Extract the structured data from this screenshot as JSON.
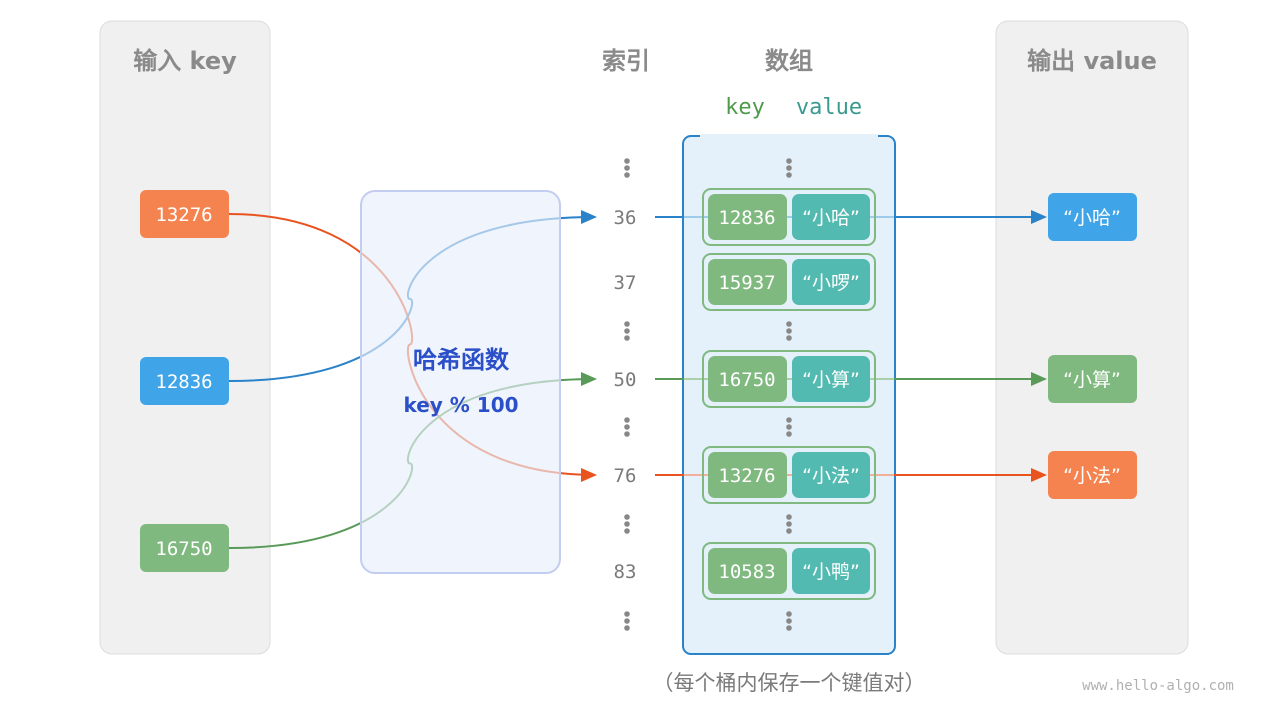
{
  "input_panel": {
    "title": "输入 key",
    "keys": [
      {
        "label": "13276",
        "color": "#f5834f"
      },
      {
        "label": "12836",
        "color": "#3fa4e8"
      },
      {
        "label": "16750",
        "color": "#80b97f"
      }
    ]
  },
  "hash_function": {
    "title": "哈希函数",
    "formula": "key % 100"
  },
  "index_header": "索引",
  "array_header": "数组",
  "array_subheader": {
    "key": "key",
    "value": "value"
  },
  "buckets": [
    {
      "index": "36",
      "key": "12836",
      "value": "“小哈”"
    },
    {
      "index": "37",
      "key": "15937",
      "value": "“小啰”"
    },
    {
      "index": "50",
      "key": "16750",
      "value": "“小算”"
    },
    {
      "index": "76",
      "key": "13276",
      "value": "“小法”"
    },
    {
      "index": "83",
      "key": "10583",
      "value": "“小鸭”"
    }
  ],
  "output_panel": {
    "title": "输出 value",
    "values": [
      {
        "label": "“小哈”",
        "color": "#3fa4e8"
      },
      {
        "label": "“小算”",
        "color": "#80b97f"
      },
      {
        "label": "“小法”",
        "color": "#f5834f"
      }
    ]
  },
  "caption": "（每个桶内保存一个键值对）",
  "watermark": "www.hello-algo.com",
  "colors": {
    "key_cell": "#80b97f",
    "value_cell": "#52bab0",
    "array_border": "#2a82c9",
    "array_fill": "#e4f0fa",
    "hash_fill": "#e8eefa",
    "hash_text": "#2a4fc9"
  }
}
